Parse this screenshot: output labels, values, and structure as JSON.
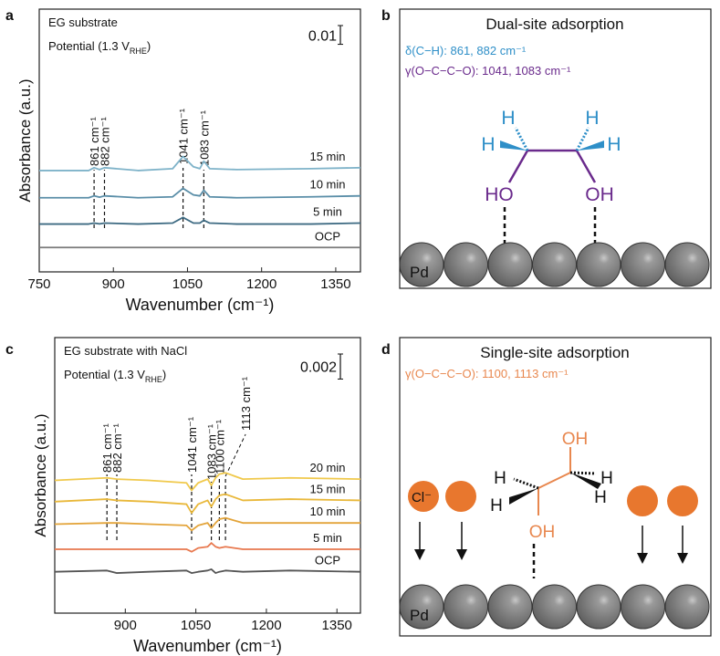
{
  "panel_labels": [
    "a",
    "b",
    "c",
    "d"
  ],
  "chart_data": [
    {
      "type": "line",
      "substrate": "EG substrate",
      "potential": {
        "text": "Potential (1.3 V",
        "sub": "RHE",
        "end": ")"
      },
      "scale_bar": 0.01,
      "ylabel": "Absorbance (a.u.)",
      "xlabel": "Wavenumber (cm⁻¹)",
      "xlim": [
        750,
        1400
      ],
      "xticks": [
        750,
        900,
        1050,
        1200,
        1350
      ],
      "ylim": [
        0,
        0.14
      ],
      "x": [
        750,
        850,
        861,
        872,
        882,
        950,
        1020,
        1041,
        1062,
        1075,
        1083,
        1095,
        1150,
        1300,
        1400
      ],
      "series": [
        {
          "name": "15 min",
          "color": "#7fb3c9",
          "values": [
            0.054,
            0.054,
            0.0555,
            0.0545,
            0.0555,
            0.054,
            0.055,
            0.0615,
            0.056,
            0.055,
            0.059,
            0.055,
            0.0545,
            0.055,
            0.0555
          ]
        },
        {
          "name": "10 min",
          "color": "#5a8ea8",
          "values": [
            0.0395,
            0.0395,
            0.0405,
            0.0398,
            0.0405,
            0.0395,
            0.04,
            0.0445,
            0.041,
            0.0405,
            0.0435,
            0.04,
            0.0395,
            0.04,
            0.0405
          ]
        },
        {
          "name": "5 min",
          "color": "#3d6a82",
          "values": [
            0.0255,
            0.0255,
            0.026,
            0.0256,
            0.026,
            0.0255,
            0.026,
            0.029,
            0.026,
            0.026,
            0.0275,
            0.026,
            0.0255,
            0.0255,
            0.026
          ]
        },
        {
          "name": "OCP",
          "color": "#7a7a7a",
          "values": [
            0.013,
            0.013,
            0.013,
            0.013,
            0.013,
            0.013,
            0.013,
            0.013,
            0.013,
            0.013,
            0.013,
            0.013,
            0.013,
            0.013,
            0.013
          ]
        }
      ],
      "annotations": [
        {
          "value": 861,
          "label": "861 cm⁻¹"
        },
        {
          "value": 882,
          "label": "882 cm⁻¹"
        },
        {
          "value": 1041,
          "label": "1041 cm⁻¹"
        },
        {
          "value": 1083,
          "label": "1083 cm⁻¹"
        }
      ]
    },
    {
      "type": "line",
      "substrate": "EG substrate with NaCl",
      "potential": {
        "text": "Potential (1.3 V",
        "sub": "RHE",
        "end": ")"
      },
      "scale_bar": 0.002,
      "ylabel": "Absorbance (a.u.)",
      "xlabel": "Wavenumber (cm⁻¹)",
      "xlim": [
        750,
        1400
      ],
      "xticks": [
        900,
        1050,
        1200,
        1350
      ],
      "ylim": [
        0,
        0.022
      ],
      "x": [
        750,
        861,
        882,
        950,
        1030,
        1041,
        1055,
        1075,
        1083,
        1092,
        1100,
        1113,
        1150,
        1250,
        1400
      ],
      "series": [
        {
          "name": "20 min",
          "color": "#f0c94c",
          "values": [
            0.0106,
            0.0108,
            0.0107,
            0.0106,
            0.0104,
            0.0098,
            0.0104,
            0.0107,
            0.0102,
            0.0108,
            0.0111,
            0.0112,
            0.0107,
            0.0108,
            0.0107
          ]
        },
        {
          "name": "15 min",
          "color": "#e9b83a",
          "values": [
            0.0089,
            0.0091,
            0.009,
            0.0089,
            0.0087,
            0.008,
            0.0087,
            0.009,
            0.0085,
            0.0091,
            0.0094,
            0.0095,
            0.009,
            0.0091,
            0.009
          ]
        },
        {
          "name": "10 min",
          "color": "#e3a43a",
          "values": [
            0.0071,
            0.0072,
            0.0072,
            0.0071,
            0.007,
            0.0066,
            0.007,
            0.0072,
            0.0068,
            0.0072,
            0.0075,
            0.0076,
            0.0072,
            0.0072,
            0.0072
          ]
        },
        {
          "name": "5 min",
          "color": "#e8784e",
          "values": [
            0.0051,
            0.0051,
            0.0051,
            0.0051,
            0.0051,
            0.0049,
            0.0052,
            0.0053,
            0.0056,
            0.0053,
            0.0052,
            0.0053,
            0.0051,
            0.0051,
            0.0051
          ]
        },
        {
          "name": "OCP",
          "color": "#555555",
          "values": [
            0.0033,
            0.0034,
            0.0032,
            0.0033,
            0.0034,
            0.0032,
            0.0033,
            0.0034,
            0.0035,
            0.0032,
            0.0033,
            0.0034,
            0.0033,
            0.0034,
            0.0033
          ]
        }
      ],
      "annotations": [
        {
          "value": 861,
          "label": "861 cm⁻¹"
        },
        {
          "value": 882,
          "label": "882 cm⁻¹"
        },
        {
          "value": 1041,
          "label": "1041 cm⁻¹"
        },
        {
          "value": 1083,
          "label": "1083 cm⁻¹"
        },
        {
          "value": 1100,
          "label": "1100 cm⁻¹"
        },
        {
          "value": 1113,
          "label": "1113 cm⁻¹"
        }
      ]
    }
  ],
  "panel_b": {
    "title": "Dual-site adsorption",
    "line1": "δ(C−H): 861, 882 cm⁻¹",
    "line2": "γ(O−C−C−O): 1041, 1083 cm⁻¹",
    "hydrogens": [
      "H",
      "H",
      "H",
      "H"
    ],
    "left_oh": "HO",
    "right_oh": "OH",
    "metal": "Pd"
  },
  "panel_d": {
    "title": "Single-site adsorption",
    "line1": "γ(O−C−C−O): 1100, 1113 cm⁻¹",
    "chloride": "Cl⁻",
    "hydrogens": [
      "H",
      "H",
      "H",
      "H"
    ],
    "top_oh": "OH",
    "bottom_oh": "OH",
    "metal": "Pd"
  }
}
